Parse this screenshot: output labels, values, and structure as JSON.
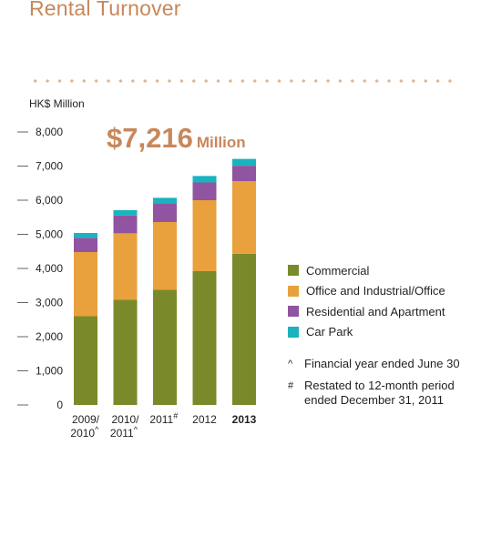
{
  "title": "Rental Turnover",
  "unit_label": "HK$ Million",
  "total": {
    "amount": "$7,216",
    "suffix": "Million"
  },
  "colors": {
    "Commercial": "#7a8a2a",
    "Office and Industrial/Office": "#e8a13c",
    "Residential and Apartment": "#9054a0",
    "Car Park": "#1ab3bf",
    "accent": "#c8875a"
  },
  "chart_data": {
    "type": "bar",
    "stacked": true,
    "categories": [
      {
        "lines": [
          "2009/",
          "2010"
        ],
        "mark": "^",
        "bold": false
      },
      {
        "lines": [
          "2010/",
          "2011"
        ],
        "mark": "^",
        "bold": false
      },
      {
        "lines": [
          "2011"
        ],
        "mark": "#",
        "bold": false
      },
      {
        "lines": [
          "2012"
        ],
        "mark": "",
        "bold": false
      },
      {
        "lines": [
          "2013"
        ],
        "mark": "",
        "bold": true
      }
    ],
    "series": [
      {
        "name": "Commercial",
        "values": [
          2600,
          3080,
          3380,
          3920,
          4430
        ]
      },
      {
        "name": "Office and Industrial/Office",
        "values": [
          1880,
          1950,
          1980,
          2080,
          2130
        ]
      },
      {
        "name": "Residential and Apartment",
        "values": [
          420,
          520,
          550,
          520,
          450
        ]
      },
      {
        "name": "Car Park",
        "values": [
          140,
          160,
          160,
          190,
          200
        ]
      }
    ],
    "yticks": [
      "0",
      "1,000",
      "2,000",
      "3,000",
      "4,000",
      "5,000",
      "6,000",
      "7,000",
      "8,000"
    ],
    "ylim": [
      0,
      8000
    ],
    "legend_position": "right"
  },
  "notes": [
    {
      "symbol": "^",
      "text": "Financial year ended June 30"
    },
    {
      "symbol": "#",
      "text": "Restated to 12-month period ended December 31, 2011"
    }
  ]
}
